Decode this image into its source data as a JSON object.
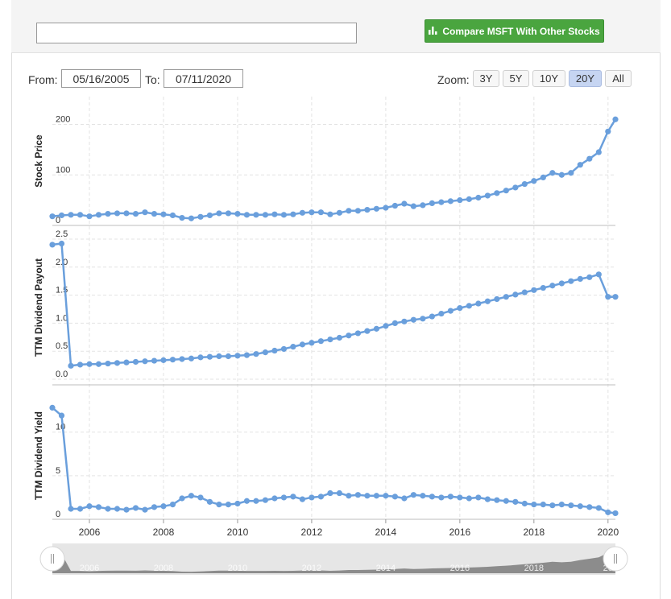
{
  "header": {
    "search_value": "",
    "compare_label": "Compare MSFT With Other Stocks",
    "compare_color": "#4aa53f"
  },
  "range": {
    "from_label": "From:",
    "from_value": "05/16/2005",
    "to_label": "To:",
    "to_value": "07/11/2020"
  },
  "zoom": {
    "label": "Zoom:",
    "options": [
      "3Y",
      "5Y",
      "10Y",
      "20Y",
      "All"
    ],
    "selected": "20Y"
  },
  "colors": {
    "series": "#6a9fdc",
    "grid": "#e3e3e3",
    "navigator_fill": "#8c8c8c",
    "navigator_bg": "#e6e6e6"
  },
  "chart_data": {
    "type": "line",
    "x_ticks": [
      "2006",
      "2008",
      "2010",
      "2012",
      "2014",
      "2016",
      "2018",
      "2020"
    ],
    "x_range": [
      2005.0,
      2020.2
    ],
    "x": [
      2005.0,
      2005.25,
      2005.5,
      2005.75,
      2006.0,
      2006.25,
      2006.5,
      2006.75,
      2007.0,
      2007.25,
      2007.5,
      2007.75,
      2008.0,
      2008.25,
      2008.5,
      2008.75,
      2009.0,
      2009.25,
      2009.5,
      2009.75,
      2010.0,
      2010.25,
      2010.5,
      2010.75,
      2011.0,
      2011.25,
      2011.5,
      2011.75,
      2012.0,
      2012.25,
      2012.5,
      2012.75,
      2013.0,
      2013.25,
      2013.5,
      2013.75,
      2014.0,
      2014.25,
      2014.5,
      2014.75,
      2015.0,
      2015.25,
      2015.5,
      2015.75,
      2016.0,
      2016.25,
      2016.5,
      2016.75,
      2017.0,
      2017.25,
      2017.5,
      2017.75,
      2018.0,
      2018.25,
      2018.5,
      2018.75,
      2019.0,
      2019.25,
      2019.5,
      2019.75,
      2020.0,
      2020.2
    ],
    "panels": [
      {
        "name": "Stock Price",
        "ylabel": "Stock Price",
        "y_ticks": [
          0,
          100,
          200
        ],
        "ylim": [
          0,
          255
        ],
        "values": [
          18,
          20,
          21,
          21,
          18,
          21,
          23,
          24,
          24,
          23,
          26,
          23,
          22,
          20,
          15,
          14,
          17,
          20,
          24,
          24,
          23,
          21,
          21,
          21,
          22,
          21,
          22,
          25,
          26,
          26,
          22,
          25,
          29,
          29,
          31,
          33,
          35,
          39,
          43,
          38,
          40,
          44,
          46,
          48,
          50,
          52,
          55,
          59,
          64,
          69,
          75,
          82,
          88,
          95,
          104,
          100,
          104,
          120,
          132,
          145,
          186,
          210
        ]
      },
      {
        "name": "TTM Dividend Payout",
        "ylabel": "TTM Dividend Payout",
        "y_ticks": [
          0.0,
          0.5,
          1.0,
          1.5,
          2.0,
          2.5
        ],
        "y_tick_labels": [
          "0.0",
          "0.5",
          "1.0",
          "1.5",
          "2.0",
          "2.5"
        ],
        "ylim": [
          -0.1,
          2.6
        ],
        "values": [
          2.4,
          2.42,
          0.24,
          0.26,
          0.27,
          0.27,
          0.28,
          0.29,
          0.3,
          0.31,
          0.32,
          0.33,
          0.34,
          0.35,
          0.36,
          0.37,
          0.39,
          0.4,
          0.41,
          0.41,
          0.42,
          0.43,
          0.45,
          0.48,
          0.51,
          0.54,
          0.58,
          0.62,
          0.65,
          0.68,
          0.71,
          0.74,
          0.78,
          0.82,
          0.86,
          0.9,
          0.95,
          1.0,
          1.03,
          1.06,
          1.08,
          1.12,
          1.17,
          1.22,
          1.27,
          1.31,
          1.35,
          1.39,
          1.43,
          1.47,
          1.51,
          1.55,
          1.59,
          1.63,
          1.67,
          1.71,
          1.75,
          1.79,
          1.82,
          1.87,
          1.47,
          1.47
        ]
      },
      {
        "name": "TTM Dividend Yield",
        "ylabel": "TTM Dividend Yield",
        "y_ticks": [
          0,
          5,
          10
        ],
        "ylim": [
          0,
          14.5
        ],
        "values": [
          12.8,
          11.9,
          1.2,
          1.2,
          1.5,
          1.4,
          1.2,
          1.2,
          1.1,
          1.3,
          1.1,
          1.4,
          1.5,
          1.7,
          2.4,
          2.7,
          2.5,
          2.0,
          1.7,
          1.7,
          1.8,
          2.1,
          2.1,
          2.2,
          2.4,
          2.5,
          2.6,
          2.3,
          2.5,
          2.6,
          3.0,
          3.0,
          2.7,
          2.8,
          2.7,
          2.7,
          2.7,
          2.6,
          2.4,
          2.8,
          2.7,
          2.6,
          2.5,
          2.6,
          2.5,
          2.4,
          2.5,
          2.3,
          2.2,
          2.1,
          2.0,
          1.8,
          1.7,
          1.7,
          1.6,
          1.7,
          1.6,
          1.5,
          1.4,
          1.3,
          0.8,
          0.7
        ]
      }
    ],
    "navigator": {
      "x_ticks": [
        "2006",
        "2008",
        "2010",
        "2012",
        "2014",
        "2016",
        "2018",
        "20"
      ]
    }
  }
}
